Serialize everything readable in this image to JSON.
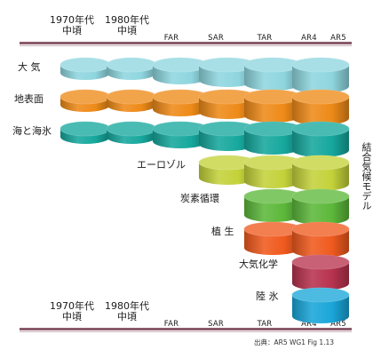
{
  "header_top": {
    "eras": [
      {
        "line1": "1970年代",
        "line2": "中頃"
      },
      {
        "line1": "1980年代",
        "line2": "中頃"
      }
    ],
    "reports": [
      "FAR",
      "SAR",
      "TAR",
      "AR4",
      "AR5"
    ]
  },
  "header_bottom": {
    "eras": [
      {
        "line1": "1970年代",
        "line2": "中頃"
      },
      {
        "line1": "1980年代",
        "line2": "中頃"
      }
    ],
    "reports": [
      "FAR",
      "SAR",
      "TAR",
      "AR4",
      "AR5"
    ]
  },
  "components": [
    {
      "label": "大 気",
      "start_col": 0,
      "color": "#8fd6df"
    },
    {
      "label": "地表面",
      "start_col": 0,
      "color": "#ee8a18"
    },
    {
      "label": "海と海氷",
      "start_col": 0,
      "color": "#16a89d"
    },
    {
      "label": "エーロゾル",
      "start_col": 3,
      "color": "#c4d23a"
    },
    {
      "label": "炭素循環",
      "start_col": 4,
      "color": "#5cb83a"
    },
    {
      "label": "植 生",
      "start_col": 4,
      "color": "#f05a1e"
    },
    {
      "label": "大気化学",
      "start_col": 5,
      "color": "#b8334f"
    },
    {
      "label": "陸 氷",
      "start_col": 5,
      "color": "#1aa6d9"
    }
  ],
  "vertical_title": "結合気候モデル",
  "source": "出典：AR5 WG1 Fig 1.13"
}
